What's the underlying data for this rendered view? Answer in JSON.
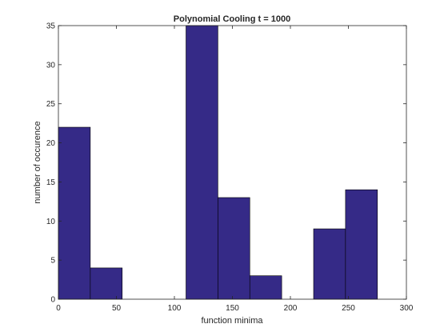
{
  "chart_data": {
    "type": "bar",
    "title": "Polynomial Cooling t = 1000",
    "xlabel": "function minima",
    "ylabel": "number of occurence",
    "xlim": [
      0,
      300
    ],
    "ylim": [
      0,
      35
    ],
    "xticks": [
      0,
      50,
      100,
      150,
      200,
      250,
      300
    ],
    "yticks": [
      0,
      5,
      10,
      15,
      20,
      25,
      30,
      35
    ],
    "bin_edges": [
      0,
      27.5,
      55,
      82.5,
      110,
      137.5,
      165,
      192.5,
      220,
      247.5,
      275
    ],
    "values": [
      22,
      4,
      0,
      0,
      35,
      13,
      3,
      0,
      9,
      14
    ],
    "bar_color": "#352a87",
    "edge_color": "#000000",
    "grid": false
  }
}
